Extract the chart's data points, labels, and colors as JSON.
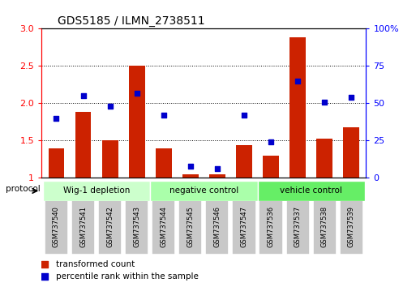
{
  "title": "GDS5185 / ILMN_2738511",
  "samples": [
    "GSM737540",
    "GSM737541",
    "GSM737542",
    "GSM737543",
    "GSM737544",
    "GSM737545",
    "GSM737546",
    "GSM737547",
    "GSM737536",
    "GSM737537",
    "GSM737538",
    "GSM737539"
  ],
  "bar_values": [
    1.4,
    1.88,
    1.5,
    2.5,
    1.4,
    1.05,
    1.05,
    1.44,
    1.3,
    2.88,
    1.53,
    1.68
  ],
  "dot_values_pct": [
    40,
    55,
    48,
    57,
    42,
    8,
    6,
    42,
    24,
    65,
    51,
    54
  ],
  "groups": [
    {
      "label": "Wig-1 depletion",
      "start": 0,
      "end": 3,
      "color": "#ccffcc"
    },
    {
      "label": "negative control",
      "start": 4,
      "end": 7,
      "color": "#aaffaa"
    },
    {
      "label": "vehicle control",
      "start": 8,
      "end": 11,
      "color": "#66ee66"
    }
  ],
  "ylim": [
    1.0,
    3.0
  ],
  "yticks_left": [
    1.0,
    1.5,
    2.0,
    2.5,
    3.0
  ],
  "yticks_right_vals": [
    0,
    25,
    50,
    75,
    100
  ],
  "yticks_right_labels": [
    "0",
    "25",
    "50",
    "75",
    "100%"
  ],
  "bar_color": "#cc2200",
  "dot_color": "#0000cc",
  "bar_width": 0.6,
  "legend_bar": "transformed count",
  "legend_dot": "percentile rank within the sample",
  "sample_box_color": "#c8c8c8",
  "plot_bg": "#ffffff"
}
